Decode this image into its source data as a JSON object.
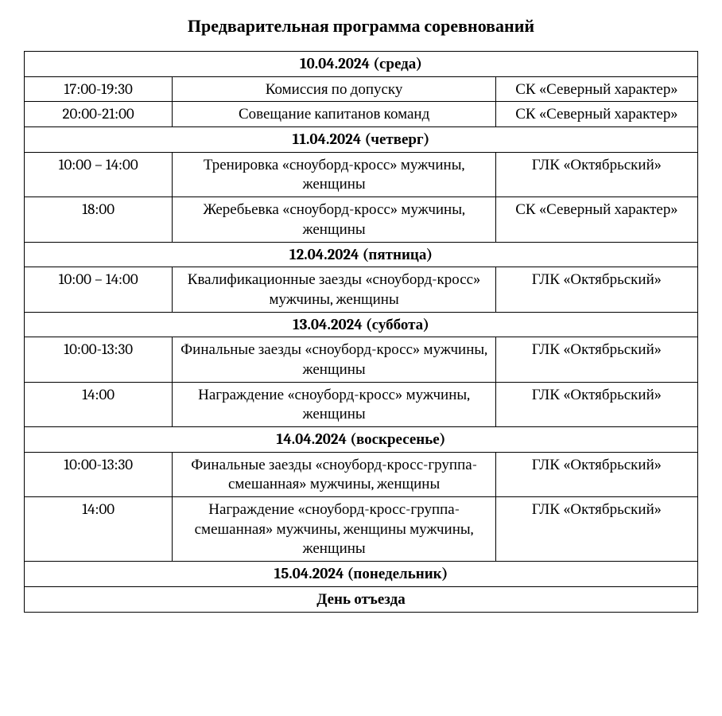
{
  "title": "Предварительная программа соревнований",
  "table": {
    "border_color": "#000000",
    "background_color": "#ffffff",
    "font_size": 19,
    "title_font_size": 22,
    "columns": {
      "time_width_pct": 22,
      "event_width_pct": 48,
      "venue_width_pct": 30
    },
    "days": [
      {
        "header": "10.04.2024 (среда)",
        "rows": [
          {
            "time": "17:00-19:30",
            "event": "Комиссия по допуску",
            "venue": "СК «Северный характер»"
          },
          {
            "time": "20:00-21:00",
            "event": "Совещание капитанов команд",
            "venue": "СК «Северный характер»"
          }
        ]
      },
      {
        "header": "11.04.2024 (четверг)",
        "rows": [
          {
            "time": "10:00 – 14:00",
            "event": "Тренировка «сноуборд-кросс» мужчины, женщины",
            "venue": "ГЛК «Октябрьский»"
          },
          {
            "time": "18:00",
            "event": "Жеребьевка «сноуборд-кросс» мужчины, женщины",
            "venue": "СК «Северный характер»"
          }
        ]
      },
      {
        "header": "12.04.2024 (пятница)",
        "rows": [
          {
            "time": "10:00 – 14:00",
            "event": "Квалификационные заезды «сноуборд-кросс» мужчины, женщины",
            "venue": "ГЛК «Октябрьский»"
          }
        ]
      },
      {
        "header": "13.04.2024 (суббота)",
        "rows": [
          {
            "time": "10:00-13:30",
            "event": "Финальные заезды «сноуборд-кросс» мужчины, женщины",
            "venue": "ГЛК «Октябрьский»"
          },
          {
            "time": "14:00",
            "event": "Награждение «сноуборд-кросс» мужчины, женщины",
            "venue": "ГЛК «Октябрьский»"
          }
        ]
      },
      {
        "header": "14.04.2024 (воскресенье)",
        "rows": [
          {
            "time": "10:00-13:30",
            "event": "Финальные заезды «сноуборд-кросс-группа-смешанная» мужчины, женщины",
            "venue": "ГЛК «Октябрьский»"
          },
          {
            "time": "14:00",
            "event": "Награждение «сноуборд-кросс-группа-смешанная» мужчины, женщины мужчины, женщины",
            "venue": "ГЛК «Октябрьский»"
          }
        ]
      },
      {
        "header": "15.04.2024 (понедельник)",
        "rows": [
          {
            "full": "День отъезда"
          }
        ]
      }
    ]
  }
}
